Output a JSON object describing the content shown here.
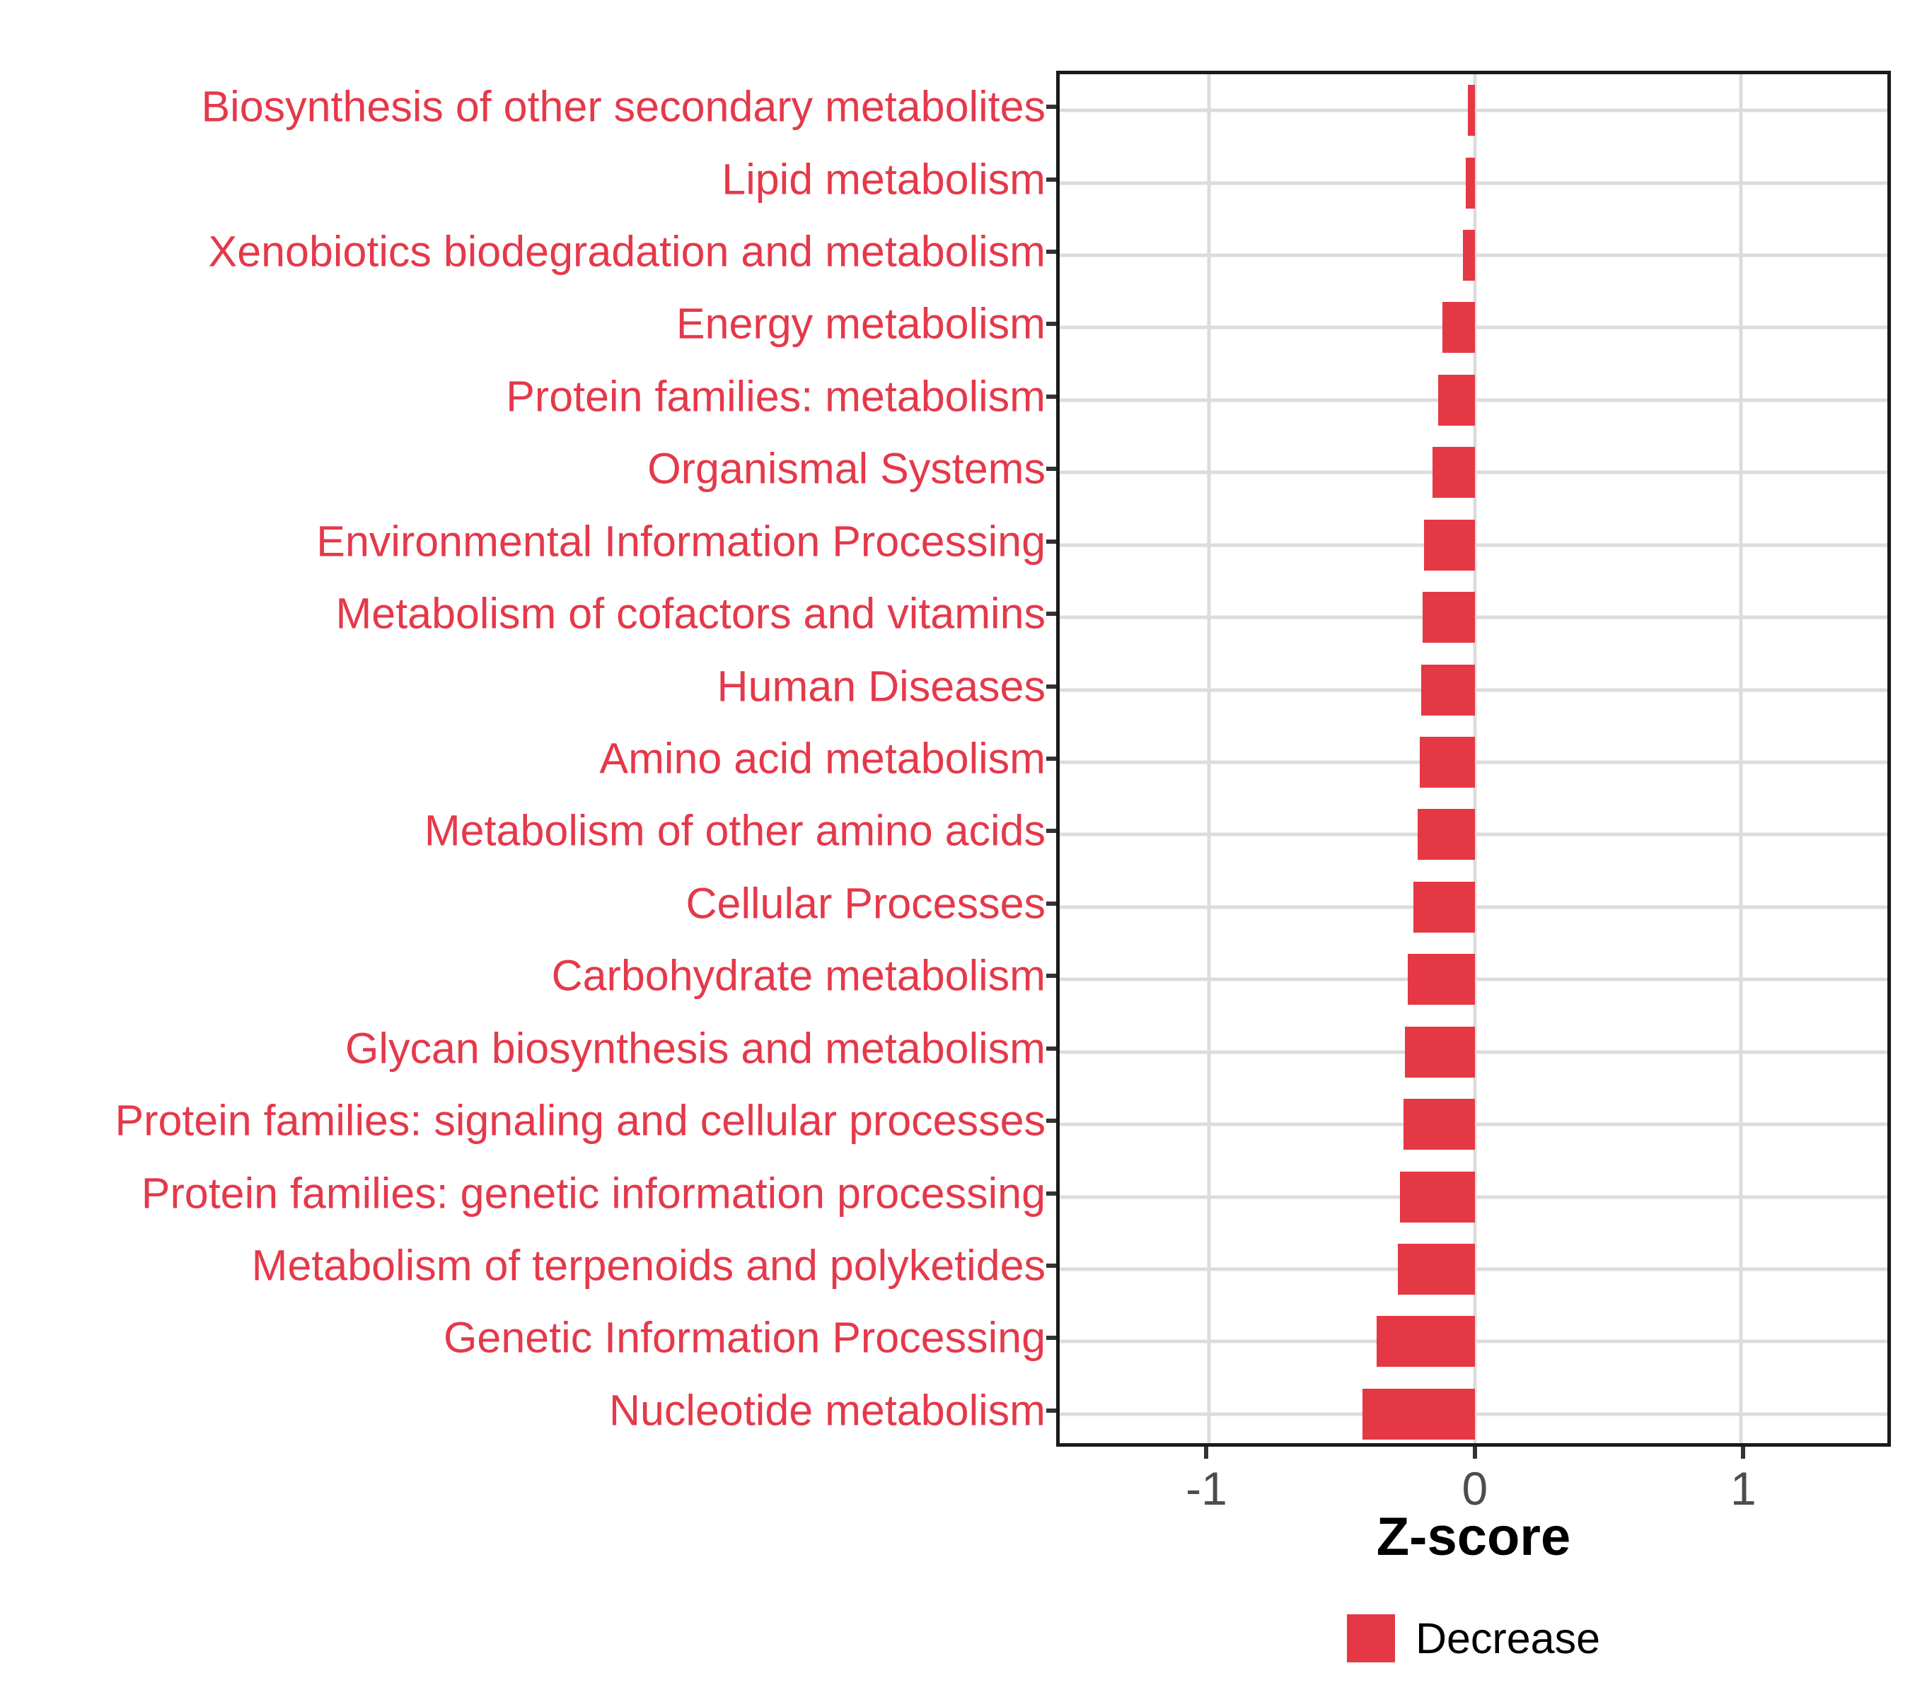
{
  "chart_data": {
    "type": "bar",
    "orientation": "horizontal",
    "title": "",
    "xlabel": "Z-score",
    "ylabel": "",
    "xlim": [
      -1.56,
      1.55
    ],
    "x_ticks": [
      -1,
      0,
      1
    ],
    "x_tick_labels": [
      "-1",
      "0",
      "1"
    ],
    "grid": "vertical major gridlines at x ticks, horizontal gridline per category",
    "legend_position": "bottom-center",
    "series": [
      {
        "name": "Decrease",
        "color": "#e53845",
        "values": [
          -0.026,
          -0.033,
          -0.046,
          -0.121,
          -0.137,
          -0.158,
          -0.192,
          -0.196,
          -0.202,
          -0.206,
          -0.214,
          -0.231,
          -0.253,
          -0.264,
          -0.269,
          -0.282,
          -0.29,
          -0.368,
          -0.423
        ]
      }
    ],
    "categories": [
      "Biosynthesis of other secondary metabolites",
      "Lipid metabolism",
      "Xenobiotics biodegradation and metabolism",
      "Energy metabolism",
      "Protein families: metabolism",
      "Organismal Systems",
      "Environmental Information Processing",
      "Metabolism of cofactors and vitamins",
      "Human Diseases",
      "Amino acid metabolism",
      "Metabolism of other amino acids",
      "Cellular Processes",
      "Carbohydrate metabolism",
      "Glycan biosynthesis and metabolism",
      "Protein families: signaling and cellular processes",
      "Protein families: genetic information processing",
      "Metabolism of terpenoids and polyketides",
      "Genetic Information Processing",
      "Nucleotide metabolism"
    ],
    "category_order": "top to bottom",
    "legend": {
      "label": "Decrease",
      "color": "#e53845"
    }
  },
  "colors": {
    "bar": "#e53845",
    "category_label": "#e4394a",
    "gridline": "#dcdcdc",
    "panel_border": "#1a1a1a",
    "tick_mark": "#333333",
    "tick_label": "#4d4d4d",
    "axis_title": "#000000",
    "background": "#ffffff"
  }
}
